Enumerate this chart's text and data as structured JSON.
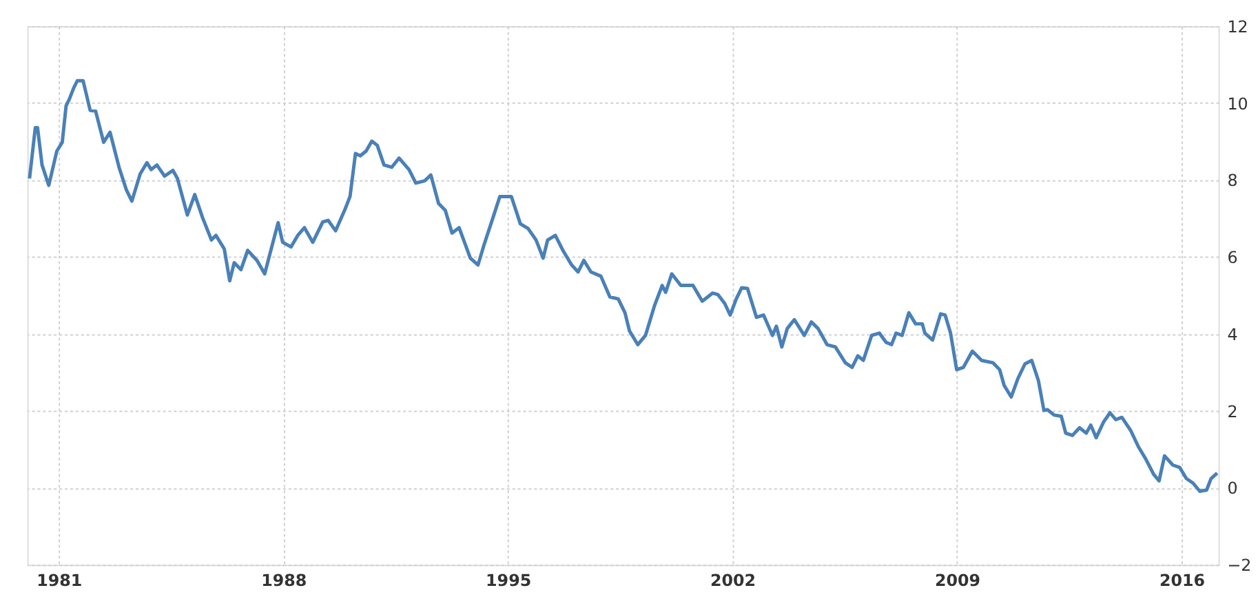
{
  "chart_data": {
    "type": "line",
    "xlim": [
      1980.02,
      2017.15
    ],
    "xticks": [
      1981,
      1988,
      1995,
      2002,
      2009,
      2016
    ],
    "ylim": [
      -2,
      12
    ],
    "yticks": [
      -2,
      0,
      2,
      4,
      6,
      8,
      10,
      12
    ],
    "grid": true,
    "line_style": "solid",
    "marker": "none",
    "series": [
      {
        "color": "#4a80b8",
        "x": [
          1980.09,
          1980.27,
          1980.34,
          1980.48,
          1980.69,
          1980.94,
          1981.11,
          1981.23,
          1981.33,
          1981.47,
          1981.58,
          1981.76,
          1981.98,
          1982.15,
          1982.4,
          1982.6,
          1982.88,
          1983.11,
          1983.28,
          1983.54,
          1983.75,
          1983.88,
          1984.06,
          1984.3,
          1984.56,
          1984.7,
          1985.01,
          1985.24,
          1985.48,
          1985.76,
          1985.9,
          1986.16,
          1986.33,
          1986.47,
          1986.68,
          1986.89,
          1987.18,
          1987.42,
          1987.64,
          1987.84,
          1987.98,
          1988.24,
          1988.45,
          1988.66,
          1988.92,
          1989.23,
          1989.4,
          1989.63,
          1989.91,
          1990.08,
          1990.25,
          1990.4,
          1990.58,
          1990.76,
          1990.93,
          1991.14,
          1991.38,
          1991.61,
          1991.92,
          1992.13,
          1992.41,
          1992.6,
          1992.84,
          1993.05,
          1993.26,
          1993.48,
          1993.83,
          1994.07,
          1994.26,
          1994.54,
          1994.75,
          1995.11,
          1995.39,
          1995.63,
          1995.88,
          1996.1,
          1996.24,
          1996.48,
          1996.73,
          1996.99,
          1997.19,
          1997.37,
          1997.59,
          1997.9,
          1998.18,
          1998.44,
          1998.65,
          1998.79,
          1999.05,
          1999.29,
          1999.57,
          1999.81,
          1999.92,
          2000.11,
          2000.39,
          2000.77,
          2001.06,
          2001.38,
          2001.55,
          2001.76,
          2001.93,
          2002.12,
          2002.29,
          2002.47,
          2002.75,
          2002.97,
          2003.25,
          2003.37,
          2003.54,
          2003.71,
          2003.93,
          2004.24,
          2004.46,
          2004.67,
          2004.95,
          2005.21,
          2005.52,
          2005.73,
          2005.91,
          2006.08,
          2006.34,
          2006.58,
          2006.79,
          2006.96,
          2007.1,
          2007.29,
          2007.5,
          2007.71,
          2007.92,
          2008.0,
          2008.24,
          2008.49,
          2008.63,
          2008.8,
          2008.99,
          2009.2,
          2009.48,
          2009.77,
          2010.12,
          2010.33,
          2010.47,
          2010.69,
          2010.9,
          2011.12,
          2011.33,
          2011.54,
          2011.71,
          2011.82,
          2012.03,
          2012.25,
          2012.39,
          2012.6,
          2012.82,
          2013.03,
          2013.17,
          2013.34,
          2013.57,
          2013.77,
          2013.95,
          2014.14,
          2014.42,
          2014.66,
          2014.87,
          2015.13,
          2015.3,
          2015.47,
          2015.73,
          2015.94,
          2016.15,
          2016.36,
          2016.57,
          2016.78,
          2016.92,
          2017.11
        ],
        "values": [
          8.04,
          9.36,
          9.36,
          8.39,
          7.86,
          8.75,
          8.98,
          9.93,
          10.1,
          10.4,
          10.58,
          10.58,
          9.81,
          9.79,
          8.98,
          9.24,
          8.33,
          7.74,
          7.45,
          8.16,
          8.45,
          8.27,
          8.39,
          8.1,
          8.25,
          8.04,
          7.09,
          7.62,
          7.03,
          6.44,
          6.56,
          6.21,
          5.38,
          5.85,
          5.67,
          6.17,
          5.91,
          5.56,
          6.26,
          6.89,
          6.38,
          6.26,
          6.56,
          6.76,
          6.38,
          6.91,
          6.95,
          6.68,
          7.21,
          7.57,
          8.69,
          8.63,
          8.75,
          9.01,
          8.9,
          8.39,
          8.33,
          8.57,
          8.27,
          7.92,
          7.98,
          8.13,
          7.39,
          7.21,
          6.62,
          6.76,
          5.97,
          5.79,
          6.32,
          7.03,
          7.57,
          7.57,
          6.86,
          6.74,
          6.44,
          5.97,
          6.44,
          6.56,
          6.15,
          5.79,
          5.61,
          5.91,
          5.61,
          5.5,
          4.96,
          4.91,
          4.55,
          4.08,
          3.72,
          3.96,
          4.73,
          5.26,
          5.08,
          5.56,
          5.26,
          5.26,
          4.85,
          5.06,
          5.02,
          4.79,
          4.49,
          4.91,
          5.2,
          5.18,
          4.43,
          4.49,
          3.96,
          4.2,
          3.66,
          4.14,
          4.37,
          3.96,
          4.31,
          4.14,
          3.72,
          3.66,
          3.25,
          3.13,
          3.43,
          3.31,
          3.96,
          4.02,
          3.78,
          3.72,
          4.02,
          3.96,
          4.55,
          4.26,
          4.26,
          4.02,
          3.84,
          4.52,
          4.49,
          4.02,
          3.07,
          3.13,
          3.55,
          3.31,
          3.25,
          3.07,
          2.66,
          2.36,
          2.84,
          3.22,
          3.31,
          2.78,
          2.01,
          2.03,
          1.89,
          1.86,
          1.42,
          1.36,
          1.56,
          1.42,
          1.63,
          1.3,
          1.71,
          1.95,
          1.77,
          1.83,
          1.48,
          1.06,
          0.77,
          0.35,
          0.18,
          0.83,
          0.59,
          0.53,
          0.24,
          0.12,
          -0.09,
          -0.06,
          0.24,
          0.38
        ]
      }
    ]
  }
}
